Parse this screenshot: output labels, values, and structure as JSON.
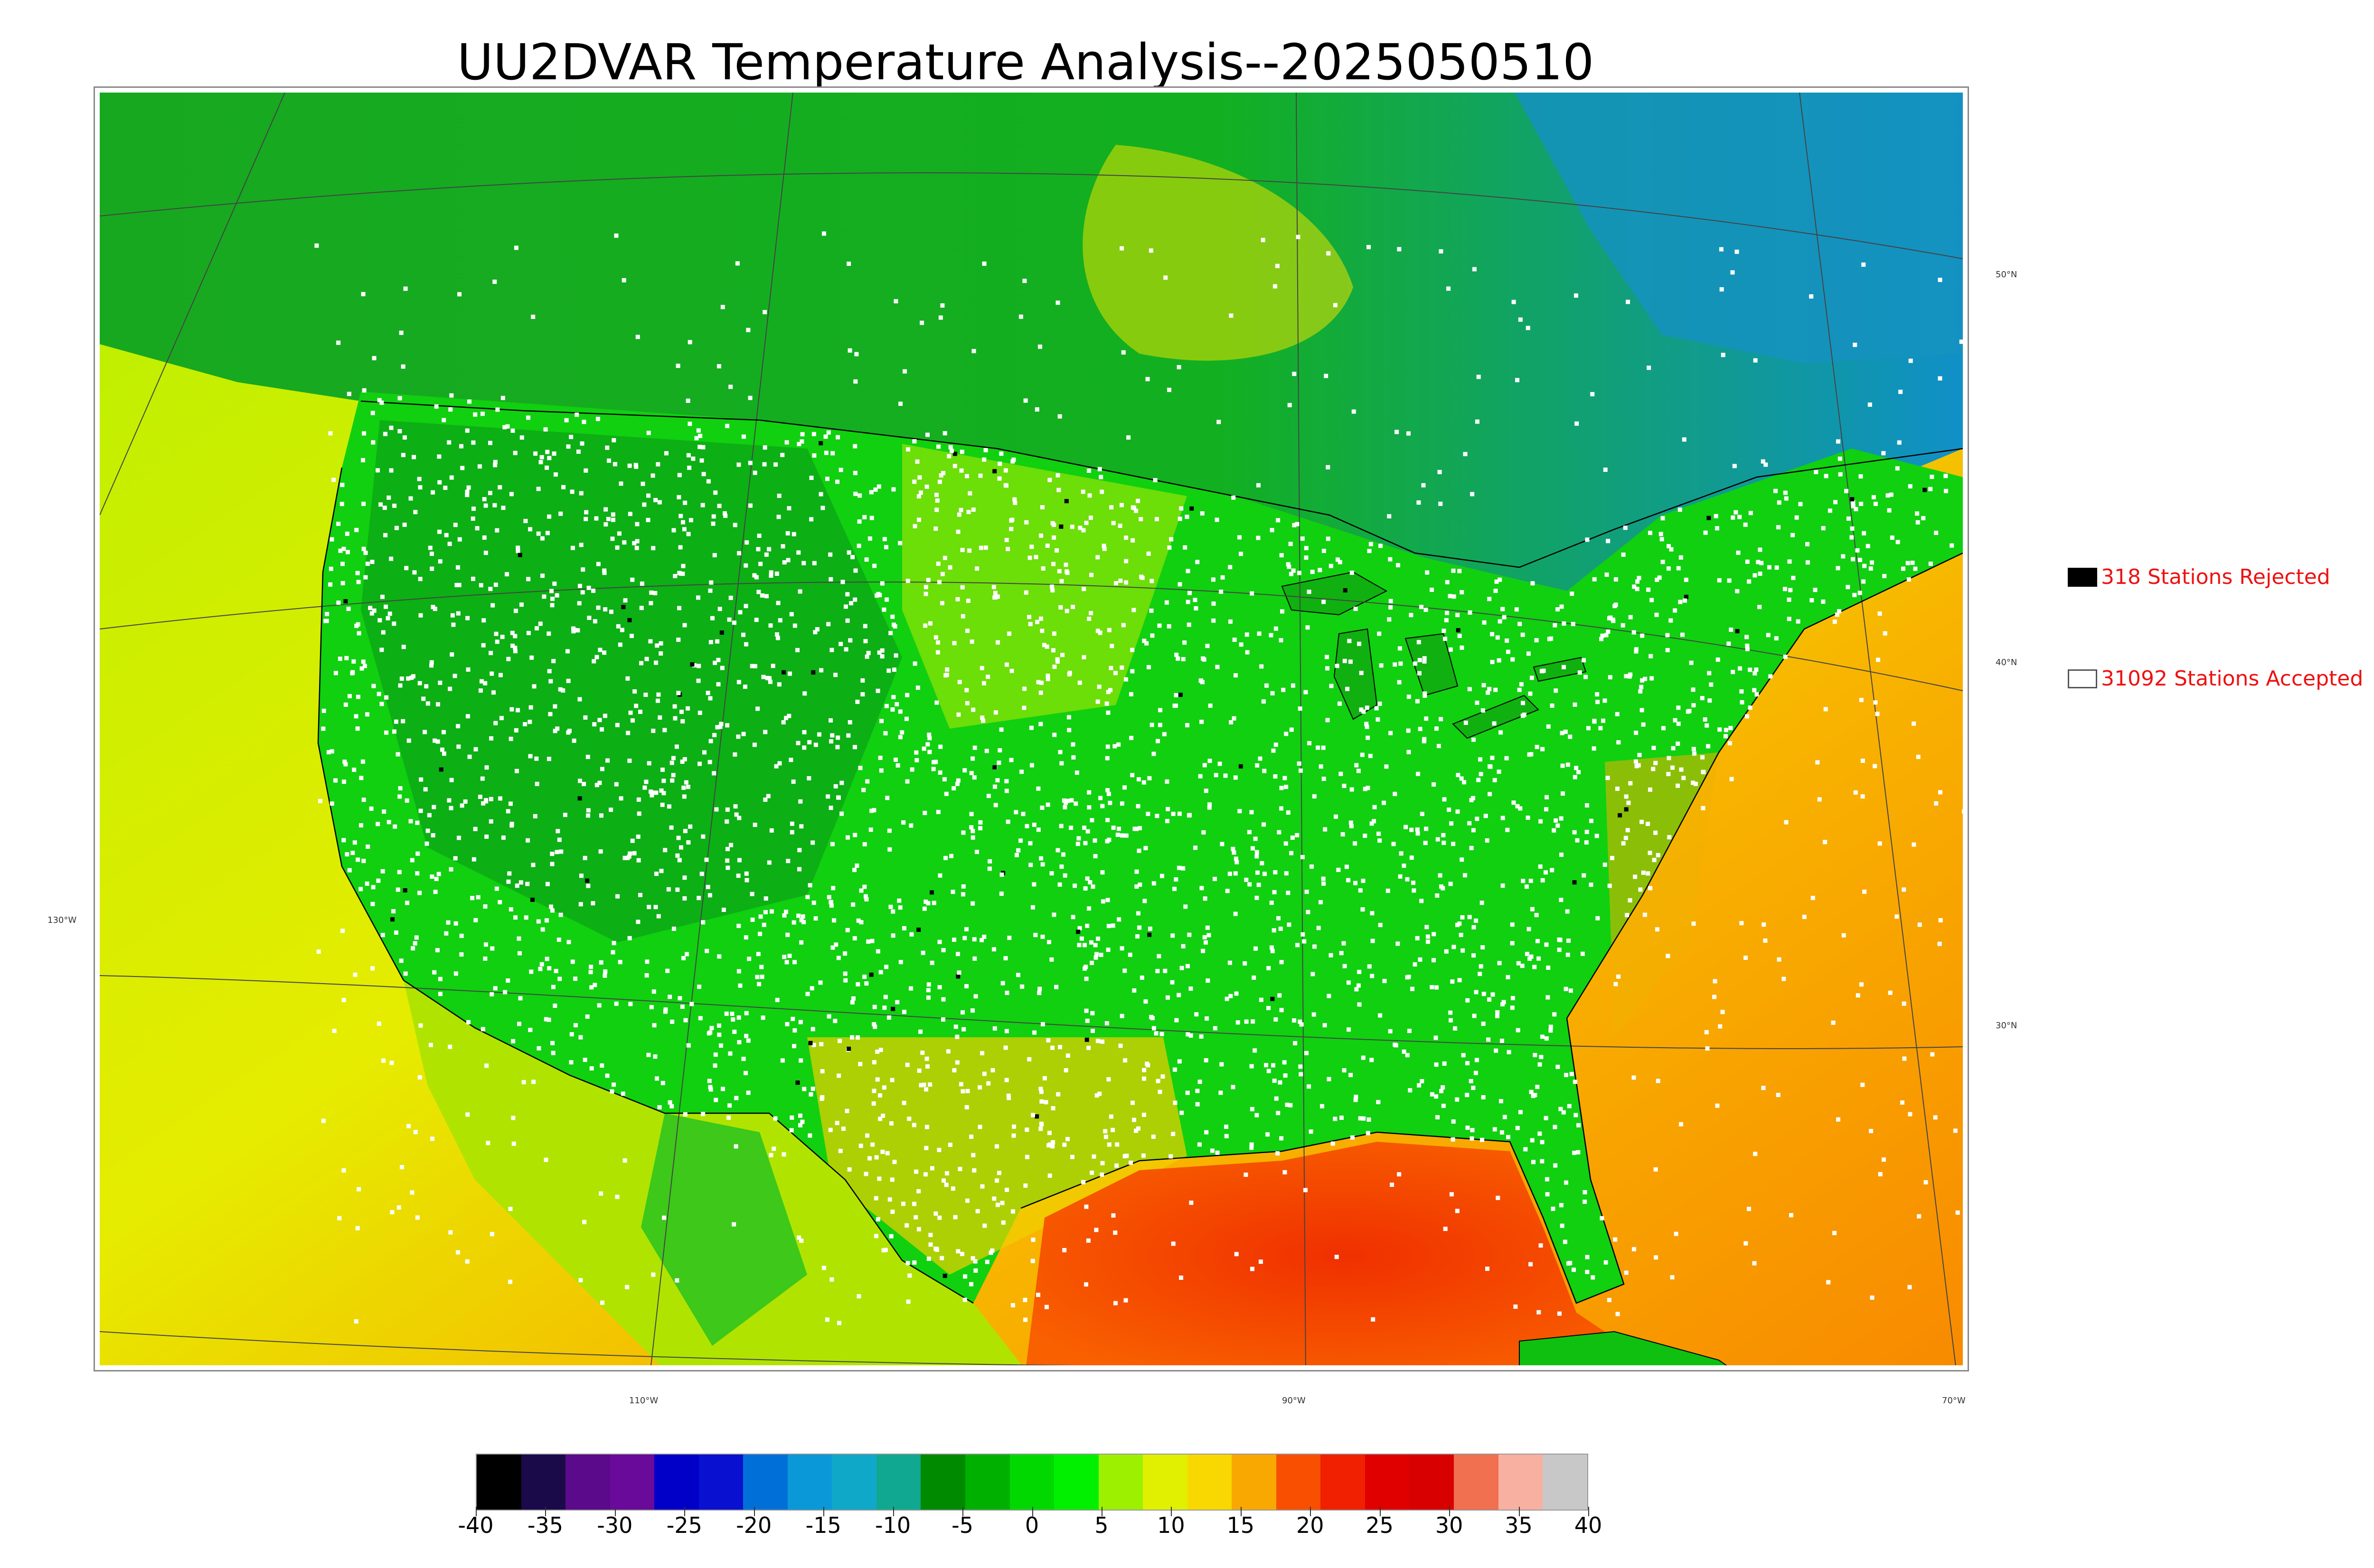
{
  "title": "UU2DVAR Temperature Analysis--2025050510",
  "legend": {
    "rejected": "318 Stations Rejected",
    "accepted": "31092 Stations Accepted"
  },
  "graticule": {
    "lat_labels": [
      "50°N",
      "40°N",
      "30°N"
    ],
    "lon_labels": [
      "130°W",
      "110°W",
      "90°W",
      "70°W"
    ]
  },
  "colorbar": {
    "ticks": [
      "-40",
      "-35",
      "-30",
      "-25",
      "-20",
      "-15",
      "-10",
      "-5",
      "0",
      "5",
      "10",
      "15",
      "20",
      "25",
      "30",
      "35",
      "40"
    ],
    "colors": [
      "#000000",
      "#1a0a4a",
      "#5c0a8c",
      "#6a0a9a",
      "#0000c8",
      "#0a10d0",
      "#0070d8",
      "#0a98d8",
      "#10a8c8",
      "#10a890",
      "#008a00",
      "#00b000",
      "#00d800",
      "#00f000",
      "#9cf000",
      "#e0f000",
      "#f8d800",
      "#f8a800",
      "#f85000",
      "#f02000",
      "#e00000",
      "#d80000",
      "#f07050",
      "#f8b0a0",
      "#c8c8c8"
    ]
  },
  "colors": {
    "ocean_warm": "#f87800",
    "land_cool": "#10c010",
    "accepted_station": "#ffffff",
    "rejected_station": "#000000",
    "legend_text": "#ee1111"
  }
}
